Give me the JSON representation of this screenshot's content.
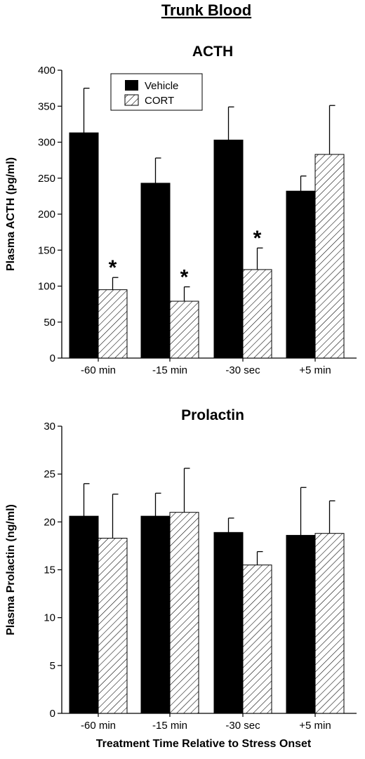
{
  "figure_title": "Trunk Blood",
  "x_axis_title": "Treatment Time Relative to Stress Onset",
  "legend": {
    "placement": "top-left",
    "entries": [
      {
        "label": "Vehicle",
        "fill": "#000000"
      },
      {
        "label": "CORT",
        "fill": "hatched"
      }
    ]
  },
  "chart_data": [
    {
      "type": "bar",
      "title": "ACTH",
      "ylabel": "Plasma ACTH (pg/ml)",
      "xlabel": "",
      "ylim": [
        0,
        400
      ],
      "yticks": [
        0,
        50,
        100,
        150,
        200,
        250,
        300,
        350,
        400
      ],
      "categories": [
        "-60 min",
        "-15 min",
        "-30 sec",
        "+5 min"
      ],
      "series": [
        {
          "name": "Vehicle",
          "values": [
            313,
            243,
            303,
            232
          ],
          "errors": [
            62,
            35,
            46,
            21
          ]
        },
        {
          "name": "CORT",
          "values": [
            95,
            79,
            123,
            283
          ],
          "errors": [
            17,
            20,
            30,
            68
          ]
        }
      ],
      "significance": [
        {
          "category": "-60 min",
          "series": "CORT",
          "marker": "*"
        },
        {
          "category": "-15 min",
          "series": "CORT",
          "marker": "*"
        },
        {
          "category": "-30 sec",
          "series": "CORT",
          "marker": "*"
        }
      ],
      "grid": false
    },
    {
      "type": "bar",
      "title": "Prolactin",
      "ylabel": "Plasma Prolactin (ng/ml)",
      "xlabel": "Treatment Time Relative to Stress Onset",
      "ylim": [
        0,
        30
      ],
      "yticks": [
        0,
        5,
        10,
        15,
        20,
        25,
        30
      ],
      "categories": [
        "-60 min",
        "-15 min",
        "-30 sec",
        "+5 min"
      ],
      "series": [
        {
          "name": "Vehicle",
          "values": [
            20.6,
            20.6,
            18.9,
            18.6
          ],
          "errors": [
            3.4,
            2.4,
            1.5,
            5.0
          ]
        },
        {
          "name": "CORT",
          "values": [
            18.3,
            21.0,
            15.5,
            18.8
          ],
          "errors": [
            4.6,
            4.6,
            1.4,
            3.4
          ]
        }
      ],
      "grid": false
    }
  ]
}
